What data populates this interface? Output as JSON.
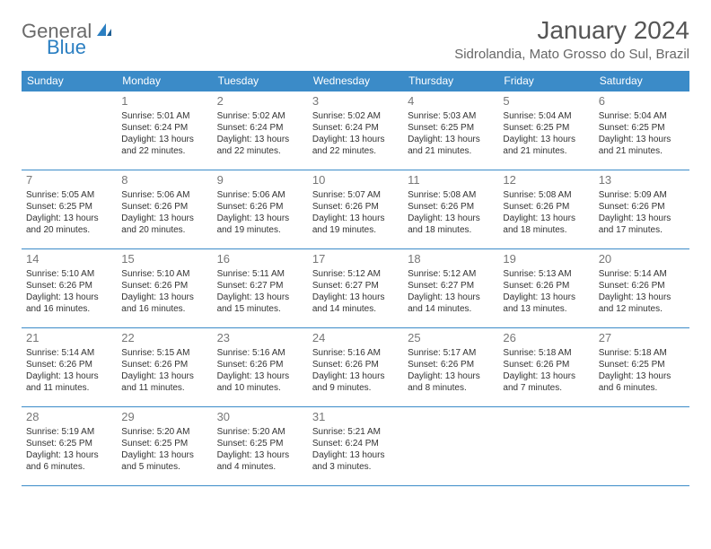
{
  "logo": {
    "part1": "General",
    "part2": "Blue"
  },
  "title": "January 2024",
  "location": "Sidrolandia, Mato Grosso do Sul, Brazil",
  "colors": {
    "header_bg": "#3b8bc8",
    "header_text": "#ffffff",
    "border": "#3b8bc8",
    "day_num": "#777777",
    "body_text": "#333333",
    "logo_gray": "#6a6a6a",
    "logo_blue": "#2b7fc2"
  },
  "weekdays": [
    "Sunday",
    "Monday",
    "Tuesday",
    "Wednesday",
    "Thursday",
    "Friday",
    "Saturday"
  ],
  "weeks": [
    [
      null,
      {
        "n": "1",
        "sr": "5:01 AM",
        "ss": "6:24 PM",
        "dl": "13 hours and 22 minutes."
      },
      {
        "n": "2",
        "sr": "5:02 AM",
        "ss": "6:24 PM",
        "dl": "13 hours and 22 minutes."
      },
      {
        "n": "3",
        "sr": "5:02 AM",
        "ss": "6:24 PM",
        "dl": "13 hours and 22 minutes."
      },
      {
        "n": "4",
        "sr": "5:03 AM",
        "ss": "6:25 PM",
        "dl": "13 hours and 21 minutes."
      },
      {
        "n": "5",
        "sr": "5:04 AM",
        "ss": "6:25 PM",
        "dl": "13 hours and 21 minutes."
      },
      {
        "n": "6",
        "sr": "5:04 AM",
        "ss": "6:25 PM",
        "dl": "13 hours and 21 minutes."
      }
    ],
    [
      {
        "n": "7",
        "sr": "5:05 AM",
        "ss": "6:25 PM",
        "dl": "13 hours and 20 minutes."
      },
      {
        "n": "8",
        "sr": "5:06 AM",
        "ss": "6:26 PM",
        "dl": "13 hours and 20 minutes."
      },
      {
        "n": "9",
        "sr": "5:06 AM",
        "ss": "6:26 PM",
        "dl": "13 hours and 19 minutes."
      },
      {
        "n": "10",
        "sr": "5:07 AM",
        "ss": "6:26 PM",
        "dl": "13 hours and 19 minutes."
      },
      {
        "n": "11",
        "sr": "5:08 AM",
        "ss": "6:26 PM",
        "dl": "13 hours and 18 minutes."
      },
      {
        "n": "12",
        "sr": "5:08 AM",
        "ss": "6:26 PM",
        "dl": "13 hours and 18 minutes."
      },
      {
        "n": "13",
        "sr": "5:09 AM",
        "ss": "6:26 PM",
        "dl": "13 hours and 17 minutes."
      }
    ],
    [
      {
        "n": "14",
        "sr": "5:10 AM",
        "ss": "6:26 PM",
        "dl": "13 hours and 16 minutes."
      },
      {
        "n": "15",
        "sr": "5:10 AM",
        "ss": "6:26 PM",
        "dl": "13 hours and 16 minutes."
      },
      {
        "n": "16",
        "sr": "5:11 AM",
        "ss": "6:27 PM",
        "dl": "13 hours and 15 minutes."
      },
      {
        "n": "17",
        "sr": "5:12 AM",
        "ss": "6:27 PM",
        "dl": "13 hours and 14 minutes."
      },
      {
        "n": "18",
        "sr": "5:12 AM",
        "ss": "6:27 PM",
        "dl": "13 hours and 14 minutes."
      },
      {
        "n": "19",
        "sr": "5:13 AM",
        "ss": "6:26 PM",
        "dl": "13 hours and 13 minutes."
      },
      {
        "n": "20",
        "sr": "5:14 AM",
        "ss": "6:26 PM",
        "dl": "13 hours and 12 minutes."
      }
    ],
    [
      {
        "n": "21",
        "sr": "5:14 AM",
        "ss": "6:26 PM",
        "dl": "13 hours and 11 minutes."
      },
      {
        "n": "22",
        "sr": "5:15 AM",
        "ss": "6:26 PM",
        "dl": "13 hours and 11 minutes."
      },
      {
        "n": "23",
        "sr": "5:16 AM",
        "ss": "6:26 PM",
        "dl": "13 hours and 10 minutes."
      },
      {
        "n": "24",
        "sr": "5:16 AM",
        "ss": "6:26 PM",
        "dl": "13 hours and 9 minutes."
      },
      {
        "n": "25",
        "sr": "5:17 AM",
        "ss": "6:26 PM",
        "dl": "13 hours and 8 minutes."
      },
      {
        "n": "26",
        "sr": "5:18 AM",
        "ss": "6:26 PM",
        "dl": "13 hours and 7 minutes."
      },
      {
        "n": "27",
        "sr": "5:18 AM",
        "ss": "6:25 PM",
        "dl": "13 hours and 6 minutes."
      }
    ],
    [
      {
        "n": "28",
        "sr": "5:19 AM",
        "ss": "6:25 PM",
        "dl": "13 hours and 6 minutes."
      },
      {
        "n": "29",
        "sr": "5:20 AM",
        "ss": "6:25 PM",
        "dl": "13 hours and 5 minutes."
      },
      {
        "n": "30",
        "sr": "5:20 AM",
        "ss": "6:25 PM",
        "dl": "13 hours and 4 minutes."
      },
      {
        "n": "31",
        "sr": "5:21 AM",
        "ss": "6:24 PM",
        "dl": "13 hours and 3 minutes."
      },
      null,
      null,
      null
    ]
  ],
  "labels": {
    "sunrise": "Sunrise: ",
    "sunset": "Sunset: ",
    "daylight": "Daylight: "
  }
}
